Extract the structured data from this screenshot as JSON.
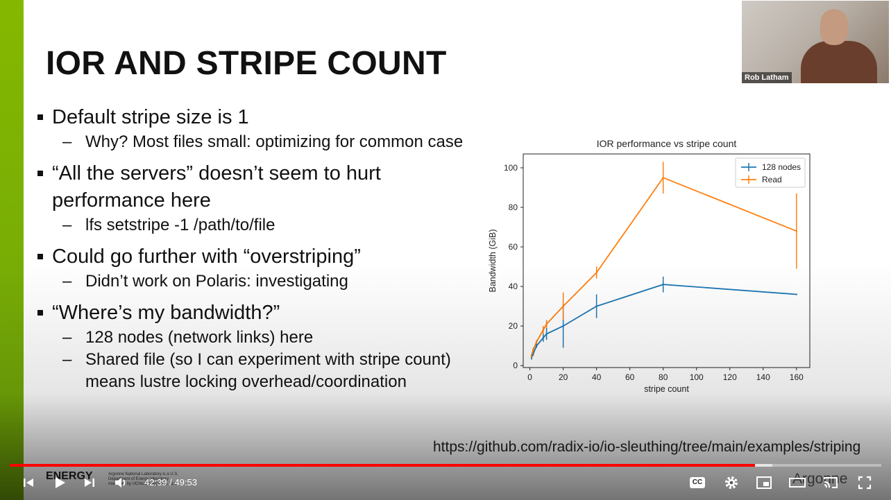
{
  "slide": {
    "title": "IOR AND STRIPE COUNT",
    "bullets": [
      {
        "text": "Default stripe size is 1",
        "subs": [
          "Why?  Most files small: optimizing for common case"
        ]
      },
      {
        "text": "“All the servers” doesn’t seem to hurt performance here",
        "subs": [
          "lfs setstripe -1 /path/to/file"
        ]
      },
      {
        "text": "Could go further with “overstriping”",
        "subs": [
          "Didn’t work on Polaris: investigating"
        ]
      },
      {
        "text": "“Where’s my bandwidth?”",
        "subs": [
          "128 nodes (network links) here",
          "Shared file (so I can experiment with stripe count) means lustre locking overhead/coordination"
        ]
      }
    ],
    "url": "https://github.com/radix-io/io-sleuthing/tree/main/examples/striping",
    "footer_logo": "ENERGY",
    "footer_small_text": "Argonne National Laboratory is a U.S. Department of Energy laboratory managed by UChicago Argonne, LLC.",
    "argonne_logo": "Argonne"
  },
  "webcam": {
    "name": "Rob Latham"
  },
  "chart_data": {
    "type": "line",
    "title": "IOR performance vs stripe count",
    "xlabel": "stripe count",
    "ylabel": "Bandwidth (GiB)",
    "xlim": [
      -4,
      168
    ],
    "ylim": [
      -1,
      107
    ],
    "xticks": [
      0,
      20,
      40,
      60,
      80,
      100,
      120,
      140,
      160
    ],
    "yticks": [
      0,
      20,
      40,
      60,
      80,
      100
    ],
    "legend_position": "top-right",
    "series": [
      {
        "name": "128 nodes",
        "color": "#1f77b4",
        "x": [
          1,
          2,
          4,
          8,
          10,
          20,
          40,
          80,
          160
        ],
        "y": [
          4,
          6,
          10,
          14,
          16,
          20,
          30,
          41,
          36
        ],
        "err": [
          1,
          1,
          1,
          2,
          3,
          11,
          6,
          4,
          0
        ]
      },
      {
        "name": "Read",
        "color": "#ff7f0e",
        "x": [
          1,
          2,
          4,
          8,
          10,
          20,
          40,
          80,
          160
        ],
        "y": [
          5,
          8,
          12,
          18,
          21,
          30,
          47,
          95,
          68
        ],
        "err": [
          1,
          1,
          1,
          2,
          2,
          7,
          3,
          8,
          19
        ]
      }
    ]
  },
  "player": {
    "time_current": "42:39",
    "time_total": "49:53",
    "progress": 0.855,
    "buffered": 0.875,
    "cc_label": "CC",
    "played_color": "#ff0000"
  }
}
